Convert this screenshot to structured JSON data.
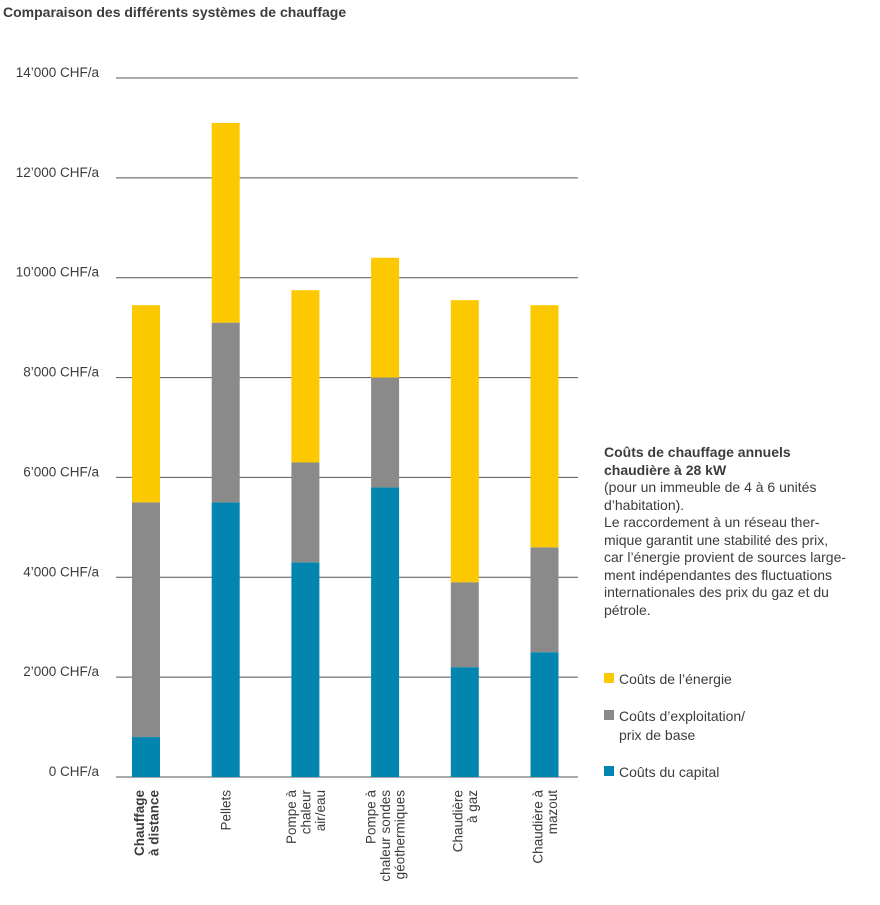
{
  "title": "Comparaison des différents systèmes de chauffage",
  "info": {
    "heading_line1": "Coûts de chauffage annuels",
    "heading_line2": "chaudière à 28 kW",
    "line3": "(pour un immeuble de 4 à 6 unités",
    "line4": "d’habitation).",
    "line5": "Le raccordement à un réseau ther-",
    "line6": "mique garantit une stabilité des prix,",
    "line7": "car l’énergie provient de sources large-",
    "line8": "ment indépendantes des fluctuations",
    "line9": "internationales des prix du gaz et du",
    "line10": "pétrole."
  },
  "legend": {
    "energy": "Coûts de l’énergie",
    "operation_line1": "Coûts d’exploitation/",
    "operation_line2": "prix de base",
    "capital": "Coûts du capital"
  },
  "colors": {
    "energy": "#fcc900",
    "operation": "#8a8a8a",
    "capital": "#0286af",
    "grid": "#555555",
    "text": "#3c3c3c"
  },
  "chart_data": {
    "type": "bar",
    "stacked": true,
    "ylim": [
      0,
      14000
    ],
    "yticks": [
      {
        "value": 0,
        "label": "0 CHF/a"
      },
      {
        "value": 2000,
        "label": "2’000 CHF/a"
      },
      {
        "value": 4000,
        "label": "4’000 CHF/a"
      },
      {
        "value": 6000,
        "label": "6’000 CHF/a"
      },
      {
        "value": 8000,
        "label": "8’000 CHF/a"
      },
      {
        "value": 10000,
        "label": "10’000 CHF/a"
      },
      {
        "value": 12000,
        "label": "12’000 CHF/a"
      },
      {
        "value": 14000,
        "label": "14’000 CHF/a"
      }
    ],
    "categories": [
      {
        "lines": [
          "Chauffage",
          "à distance"
        ],
        "bold": true
      },
      {
        "lines": [
          "Pellets"
        ],
        "bold": false
      },
      {
        "lines": [
          "Pompe à",
          "chaleur",
          "air/eau"
        ],
        "bold": false
      },
      {
        "lines": [
          "Pompe à",
          "chaleur sondes",
          "géothermiques"
        ],
        "bold": false
      },
      {
        "lines": [
          "Chaudière",
          "à gaz"
        ],
        "bold": false
      },
      {
        "lines": [
          "Chaudière à",
          "mazout"
        ],
        "bold": false
      }
    ],
    "series": [
      {
        "name": "Coûts du capital",
        "key": "capital",
        "values": [
          800,
          5500,
          4300,
          5800,
          2200,
          2500
        ]
      },
      {
        "name": "Coûts d’exploitation/prix de base",
        "key": "operation",
        "values": [
          4700,
          3600,
          2000,
          2200,
          1700,
          2100
        ]
      },
      {
        "name": "Coûts de l’énergie",
        "key": "energy",
        "values": [
          3950,
          4000,
          3450,
          2400,
          5650,
          4850
        ]
      }
    ]
  }
}
